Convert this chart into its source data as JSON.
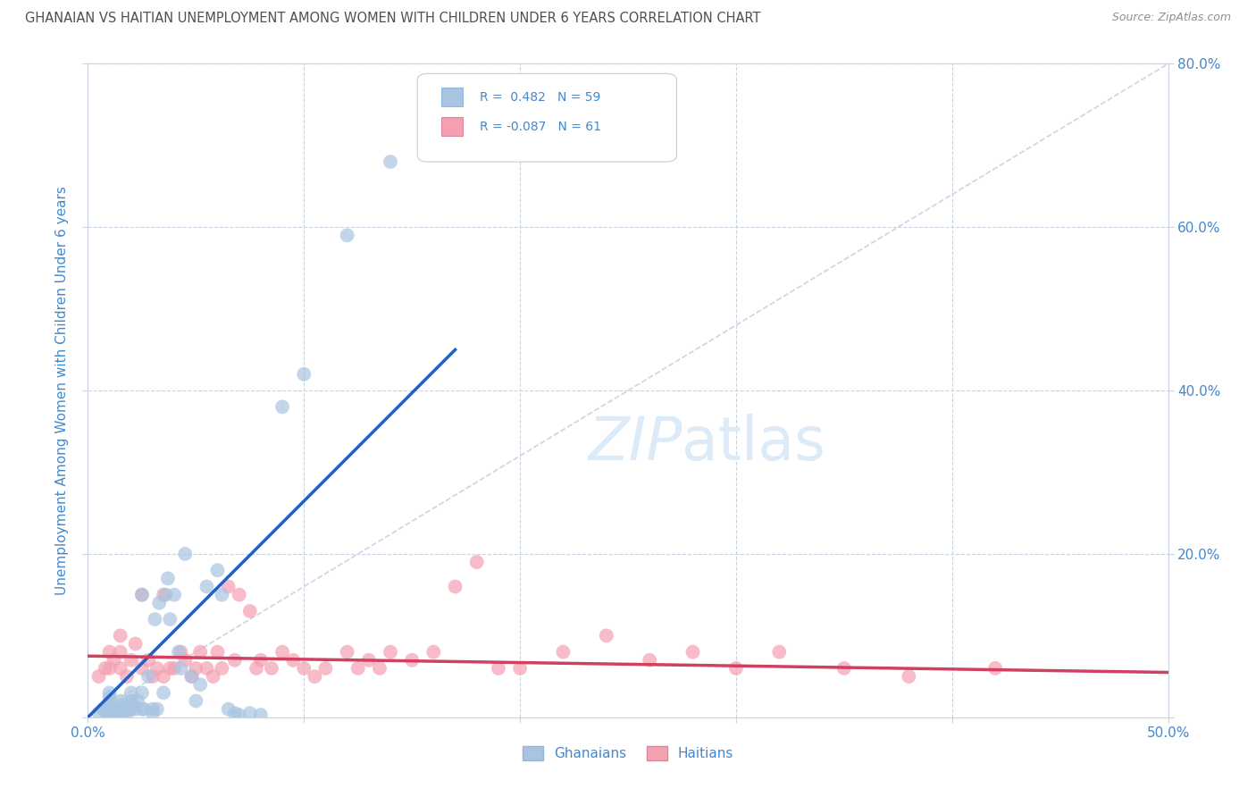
{
  "title": "GHANAIAN VS HAITIAN UNEMPLOYMENT AMONG WOMEN WITH CHILDREN UNDER 6 YEARS CORRELATION CHART",
  "source": "Source: ZipAtlas.com",
  "ylabel": "Unemployment Among Women with Children Under 6 years",
  "x_min": 0.0,
  "x_max": 0.5,
  "y_min": 0.0,
  "y_max": 0.8,
  "ghanaian_R": 0.482,
  "ghanaian_N": 59,
  "haitian_R": -0.087,
  "haitian_N": 61,
  "ghanaian_color": "#a8c4e0",
  "haitian_color": "#f4a0b0",
  "ghanaian_line_color": "#2060c0",
  "haitian_line_color": "#d04060",
  "ref_line_color": "#c8d0dc",
  "background_color": "#ffffff",
  "grid_color": "#c8d4e4",
  "title_color": "#505050",
  "source_color": "#909090",
  "axis_label_color": "#4488cc",
  "legend_text_color": "#4488cc",
  "watermark_color": "#ddeaf8",
  "ghanaian_points_x": [
    0.005,
    0.007,
    0.008,
    0.009,
    0.01,
    0.01,
    0.01,
    0.01,
    0.01,
    0.012,
    0.013,
    0.014,
    0.015,
    0.015,
    0.015,
    0.016,
    0.017,
    0.018,
    0.018,
    0.019,
    0.02,
    0.02,
    0.02,
    0.021,
    0.022,
    0.023,
    0.025,
    0.025,
    0.025,
    0.026,
    0.028,
    0.03,
    0.03,
    0.031,
    0.032,
    0.033,
    0.035,
    0.036,
    0.037,
    0.038,
    0.04,
    0.042,
    0.043,
    0.045,
    0.048,
    0.05,
    0.052,
    0.055,
    0.06,
    0.062,
    0.065,
    0.068,
    0.07,
    0.075,
    0.08,
    0.09,
    0.1,
    0.12,
    0.14
  ],
  "ghanaian_points_y": [
    0.005,
    0.01,
    0.008,
    0.005,
    0.005,
    0.015,
    0.02,
    0.025,
    0.03,
    0.008,
    0.01,
    0.005,
    0.005,
    0.01,
    0.02,
    0.015,
    0.008,
    0.01,
    0.015,
    0.008,
    0.01,
    0.02,
    0.03,
    0.015,
    0.01,
    0.02,
    0.01,
    0.03,
    0.15,
    0.01,
    0.05,
    0.005,
    0.01,
    0.12,
    0.01,
    0.14,
    0.03,
    0.15,
    0.17,
    0.12,
    0.15,
    0.08,
    0.06,
    0.2,
    0.05,
    0.02,
    0.04,
    0.16,
    0.18,
    0.15,
    0.01,
    0.005,
    0.003,
    0.005,
    0.003,
    0.38,
    0.42,
    0.59,
    0.68
  ],
  "haitian_points_x": [
    0.005,
    0.008,
    0.01,
    0.01,
    0.012,
    0.015,
    0.015,
    0.015,
    0.018,
    0.02,
    0.022,
    0.025,
    0.025,
    0.028,
    0.03,
    0.032,
    0.035,
    0.035,
    0.038,
    0.04,
    0.043,
    0.045,
    0.048,
    0.05,
    0.052,
    0.055,
    0.058,
    0.06,
    0.062,
    0.065,
    0.068,
    0.07,
    0.075,
    0.078,
    0.08,
    0.085,
    0.09,
    0.095,
    0.1,
    0.105,
    0.11,
    0.12,
    0.125,
    0.13,
    0.135,
    0.14,
    0.15,
    0.16,
    0.17,
    0.18,
    0.19,
    0.2,
    0.22,
    0.24,
    0.26,
    0.28,
    0.3,
    0.32,
    0.35,
    0.38,
    0.42
  ],
  "haitian_points_y": [
    0.05,
    0.06,
    0.06,
    0.08,
    0.07,
    0.06,
    0.08,
    0.1,
    0.05,
    0.07,
    0.09,
    0.06,
    0.15,
    0.07,
    0.05,
    0.06,
    0.05,
    0.15,
    0.06,
    0.06,
    0.08,
    0.07,
    0.05,
    0.06,
    0.08,
    0.06,
    0.05,
    0.08,
    0.06,
    0.16,
    0.07,
    0.15,
    0.13,
    0.06,
    0.07,
    0.06,
    0.08,
    0.07,
    0.06,
    0.05,
    0.06,
    0.08,
    0.06,
    0.07,
    0.06,
    0.08,
    0.07,
    0.08,
    0.16,
    0.19,
    0.06,
    0.06,
    0.08,
    0.1,
    0.07,
    0.08,
    0.06,
    0.08,
    0.06,
    0.05,
    0.06
  ],
  "ghanaian_trend_x": [
    0.0,
    0.17
  ],
  "ghanaian_trend_y": [
    0.0,
    0.45
  ],
  "haitian_trend_x": [
    0.0,
    0.5
  ],
  "haitian_trend_y": [
    0.075,
    0.055
  ]
}
